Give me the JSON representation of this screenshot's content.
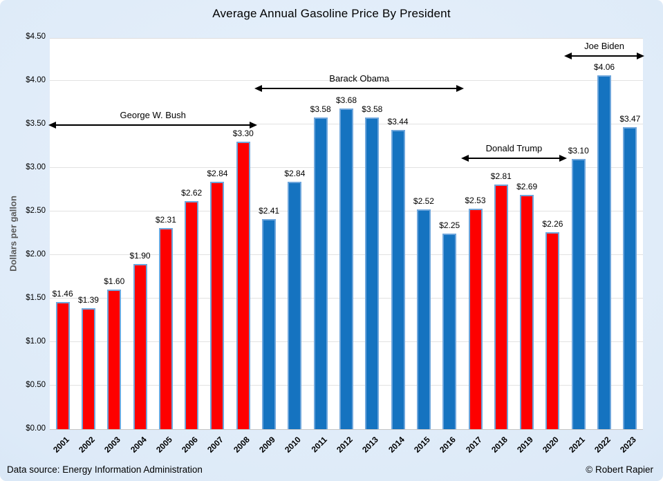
{
  "footer": {
    "source": "Data source: Energy Information Administration",
    "credit": "© Robert Rapier"
  },
  "chart_data": {
    "type": "bar",
    "title": "Average Annual Gasoline Price By President",
    "xlabel": "",
    "ylabel": "Dollars per gallon",
    "ylim": [
      0,
      4.5
    ],
    "ytick_step": 0.5,
    "ytick_labels": [
      "$0.00",
      "$0.50",
      "$1.00",
      "$1.50",
      "$2.00",
      "$2.50",
      "$3.00",
      "$3.50",
      "$4.00",
      "$4.50"
    ],
    "grid": true,
    "legend": "none",
    "categories": [
      "2001",
      "2002",
      "2003",
      "2004",
      "2005",
      "2006",
      "2007",
      "2008",
      "2009",
      "2010",
      "2011",
      "2012",
      "2013",
      "2014",
      "2015",
      "2016",
      "2017",
      "2018",
      "2019",
      "2020",
      "2021",
      "2022",
      "2023"
    ],
    "values": [
      1.46,
      1.39,
      1.6,
      1.9,
      2.31,
      2.62,
      2.84,
      3.3,
      2.41,
      2.84,
      3.58,
      3.68,
      3.58,
      3.44,
      2.52,
      2.25,
      2.53,
      2.81,
      2.69,
      2.26,
      3.1,
      4.06,
      3.47
    ],
    "data_labels": [
      "$1.46",
      "$1.39",
      "$1.60",
      "$1.90",
      "$2.31",
      "$2.62",
      "$2.84",
      "$3.30",
      "$2.41",
      "$2.84",
      "$3.58",
      "$3.68",
      "$3.58",
      "$3.44",
      "$2.52",
      "$2.25",
      "$2.53",
      "$2.81",
      "$2.69",
      "$2.26",
      "$3.10",
      "$4.06",
      "$3.47"
    ],
    "bar_parties": [
      "R",
      "R",
      "R",
      "R",
      "R",
      "R",
      "R",
      "R",
      "D",
      "D",
      "D",
      "D",
      "D",
      "D",
      "D",
      "D",
      "R",
      "R",
      "R",
      "R",
      "D",
      "D",
      "D"
    ],
    "party_colors": {
      "R": "#fe0000",
      "D": "#1573c0"
    },
    "bar_border_color": "#6ea6dc",
    "annotations": [
      {
        "label": "George W. Bush",
        "from": "2001",
        "to": "2008",
        "level": 3.5
      },
      {
        "label": "Barack Obama",
        "from": "2009",
        "to": "2016",
        "level": 3.92
      },
      {
        "label": "Donald Trump",
        "from": "2017",
        "to": "2020",
        "level": 3.12
      },
      {
        "label": "Joe Biden",
        "from": "2021",
        "to": "2023",
        "level": 4.29
      }
    ]
  }
}
